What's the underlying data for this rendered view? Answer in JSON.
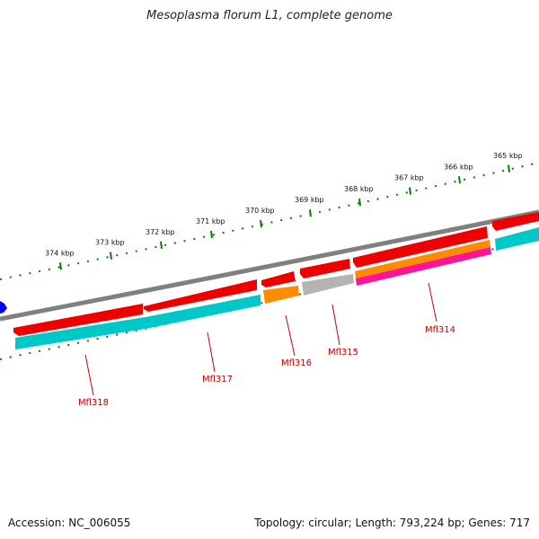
{
  "title": "Mesoplasma florum L1, complete genome",
  "footer": {
    "accession": "Accession: NC_006055",
    "info": "Topology: circular; Length: 793,224 bp; Genes: 717"
  },
  "scale": {
    "unit": "kbp",
    "ticks": [
      {
        "value": 374,
        "label": "374 kbp"
      },
      {
        "value": 373,
        "label": "373 kbp"
      },
      {
        "value": 372,
        "label": "372 kbp"
      },
      {
        "value": 371,
        "label": "371 kbp"
      },
      {
        "value": 370,
        "label": "370 kbp"
      },
      {
        "value": 369,
        "label": "369 kbp"
      },
      {
        "value": 368,
        "label": "368 kbp"
      },
      {
        "value": 367,
        "label": "367 kbp"
      },
      {
        "value": 366,
        "label": "366 kbp"
      },
      {
        "value": 365,
        "label": "365 kbp"
      }
    ]
  },
  "genes": [
    {
      "label": "Mfl318",
      "color": "#ee0000"
    },
    {
      "label": "Mfl317",
      "color": "#ee0000"
    },
    {
      "label": "Mfl316",
      "color": "#ee0000"
    },
    {
      "label": "Mfl315",
      "color": "#ee0000"
    },
    {
      "label": "Mfl314",
      "color": "#ee0000"
    }
  ],
  "colors": {
    "cds": "#ee0000",
    "cog_teal": "#00c8c8",
    "cog_orange": "#ff8c00",
    "cog_gray": "#b4b4b4",
    "cog_pink": "#ff1493",
    "backbone": "#808080",
    "ticks": "#008000",
    "start_marker": "#0000ff",
    "label": "#cc0000"
  }
}
